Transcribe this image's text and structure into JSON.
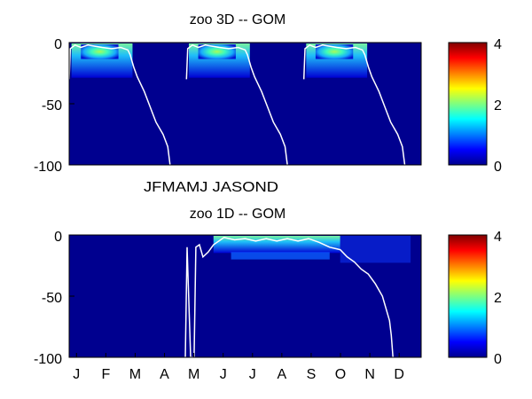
{
  "chart_data": [
    {
      "type": "heatmap",
      "title": "zoo 3D   -- GOM",
      "xlabel": "",
      "ylabel": "",
      "ylim": [
        -100,
        0
      ],
      "yticks": [
        "0",
        "-50",
        "-100"
      ],
      "x_tick_labels": [
        "J",
        "F",
        "M",
        "A",
        "M",
        "J",
        "J",
        "A",
        "S",
        "O",
        "N",
        "D"
      ],
      "x_tick_label_text": "JFMAMJ JASOND",
      "colorbar": {
        "min": 0,
        "max": 4,
        "ticks": [
          "4",
          "2",
          "0"
        ],
        "colormap": "jet"
      },
      "panels_years": 3,
      "series": [
        {
          "points": [
            [
              0.0,
              -30
            ],
            [
              0.01,
              -5
            ],
            [
              0.05,
              -2
            ],
            [
              0.1,
              -4
            ],
            [
              0.16,
              -2
            ],
            [
              0.22,
              -3
            ],
            [
              0.28,
              -4
            ],
            [
              0.36,
              -5
            ],
            [
              0.44,
              -4
            ],
            [
              0.5,
              -6
            ],
            [
              0.52,
              -10
            ],
            [
              0.55,
              -20
            ],
            [
              0.58,
              -28
            ],
            [
              0.64,
              -40
            ],
            [
              0.7,
              -55
            ],
            [
              0.74,
              -65
            ],
            [
              0.8,
              -75
            ],
            [
              0.84,
              -85
            ],
            [
              0.86,
              -100
            ]
          ]
        }
      ]
    },
    {
      "type": "heatmap",
      "title": "zoo 1D   -- GOM",
      "xlabel": "",
      "ylabel": "",
      "ylim": [
        -100,
        0
      ],
      "yticks": [
        "0",
        "-50",
        "-100"
      ],
      "x_tick_labels": [
        "J",
        "F",
        "M",
        "A",
        "M",
        "J",
        "J",
        "A",
        "S",
        "O",
        "N",
        "D"
      ],
      "colorbar": {
        "min": 0,
        "max": 4,
        "ticks": [
          "4",
          "2",
          "0"
        ],
        "colormap": "jet"
      },
      "series": [
        {
          "points": [
            [
              0.33,
              -100
            ],
            [
              0.335,
              -10
            ],
            [
              0.345,
              -100
            ],
            [
              0.355,
              -100
            ],
            [
              0.36,
              -10
            ],
            [
              0.37,
              -8
            ],
            [
              0.38,
              -18
            ],
            [
              0.395,
              -14
            ],
            [
              0.41,
              -8
            ],
            [
              0.44,
              -2
            ],
            [
              0.47,
              -4
            ],
            [
              0.5,
              -3
            ],
            [
              0.53,
              -5
            ],
            [
              0.56,
              -3
            ],
            [
              0.59,
              -5
            ],
            [
              0.62,
              -3
            ],
            [
              0.65,
              -5
            ],
            [
              0.68,
              -3
            ],
            [
              0.71,
              -6
            ],
            [
              0.74,
              -10
            ],
            [
              0.77,
              -12
            ],
            [
              0.79,
              -18
            ],
            [
              0.81,
              -22
            ],
            [
              0.83,
              -28
            ],
            [
              0.85,
              -32
            ],
            [
              0.87,
              -40
            ],
            [
              0.89,
              -50
            ],
            [
              0.9,
              -60
            ],
            [
              0.91,
              -70
            ],
            [
              0.915,
              -82
            ],
            [
              0.92,
              -100
            ]
          ]
        }
      ]
    }
  ]
}
